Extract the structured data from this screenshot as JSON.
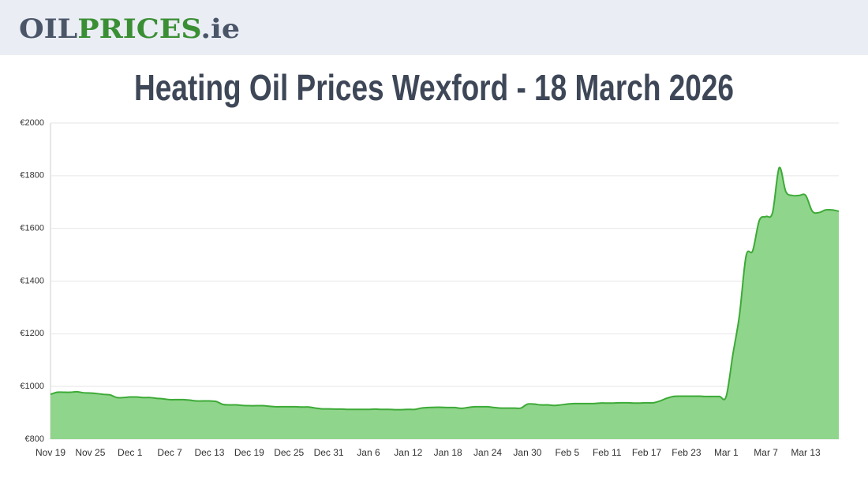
{
  "header": {
    "logo": [
      "OIL",
      "PRICES",
      ".ie"
    ]
  },
  "chart_data": {
    "type": "area",
    "title": "Heating Oil Prices Wexford - 18 March 2026",
    "categories": [
      "Nov 19",
      null,
      null,
      null,
      null,
      null,
      "Nov 25",
      null,
      null,
      null,
      null,
      null,
      "Dec 1",
      null,
      null,
      null,
      null,
      null,
      "Dec 7",
      null,
      null,
      null,
      null,
      null,
      "Dec 13",
      null,
      null,
      null,
      null,
      null,
      "Dec 19",
      null,
      null,
      null,
      null,
      null,
      "Dec 25",
      null,
      null,
      null,
      null,
      null,
      "Dec 31",
      null,
      null,
      null,
      null,
      null,
      "Jan 6",
      null,
      null,
      null,
      null,
      null,
      "Jan 12",
      null,
      null,
      null,
      null,
      null,
      "Jan 18",
      null,
      null,
      null,
      null,
      null,
      "Jan 24",
      null,
      null,
      null,
      null,
      null,
      "Jan 30",
      null,
      null,
      null,
      null,
      null,
      "Feb 5",
      null,
      null,
      null,
      null,
      null,
      "Feb 11",
      null,
      null,
      null,
      null,
      null,
      "Feb 17",
      null,
      null,
      null,
      null,
      null,
      "Feb 23",
      null,
      null,
      null,
      null,
      null,
      "Mar 1",
      null,
      null,
      null,
      null,
      null,
      "Mar 7",
      null,
      null,
      null,
      null,
      null,
      "Mar 13",
      null,
      null,
      null,
      null,
      null
    ],
    "values": [
      970,
      978,
      978,
      978,
      980,
      976,
      975,
      973,
      970,
      968,
      958,
      958,
      960,
      960,
      958,
      958,
      955,
      953,
      950,
      950,
      950,
      948,
      945,
      945,
      945,
      943,
      932,
      930,
      930,
      928,
      927,
      927,
      927,
      925,
      923,
      923,
      923,
      923,
      922,
      922,
      918,
      915,
      915,
      914,
      914,
      913,
      913,
      913,
      913,
      914,
      913,
      913,
      912,
      912,
      913,
      913,
      918,
      920,
      921,
      921,
      920,
      920,
      917,
      920,
      923,
      923,
      923,
      920,
      918,
      918,
      918,
      918,
      933,
      933,
      930,
      930,
      928,
      930,
      933,
      935,
      935,
      935,
      935,
      937,
      937,
      937,
      938,
      938,
      937,
      937,
      938,
      938,
      945,
      955,
      962,
      963,
      963,
      963,
      963,
      962,
      962,
      962,
      962,
      1120,
      1270,
      1495,
      1515,
      1630,
      1645,
      1660,
      1830,
      1740,
      1725,
      1725,
      1725,
      1665,
      1660,
      1670,
      1670,
      1665
    ],
    "color": "#3daa37",
    "fill_color": "#90d58c",
    "ylim": [
      800,
      2000
    ],
    "yticks": [
      {
        "value": 800,
        "label": "€800"
      },
      {
        "value": 1000,
        "label": "€1000"
      },
      {
        "value": 1200,
        "label": "€1200"
      },
      {
        "value": 1400,
        "label": "€1400"
      },
      {
        "value": 1600,
        "label": "€1600"
      },
      {
        "value": 1800,
        "label": "€1800"
      },
      {
        "value": 2000,
        "label": "€2000"
      }
    ],
    "grid": true
  }
}
